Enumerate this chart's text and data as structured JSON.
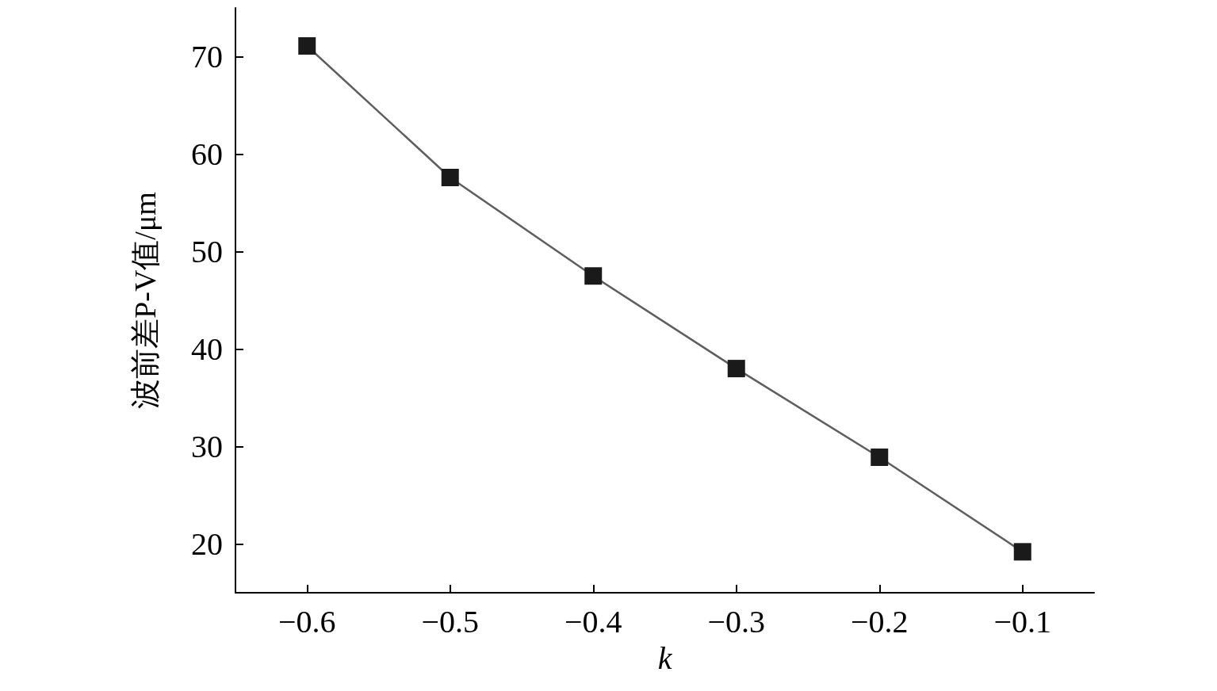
{
  "chart_data": {
    "type": "line",
    "xlabel": "k",
    "ylabel": "波前差P-V值/μm",
    "x": [
      -0.6,
      -0.5,
      -0.4,
      -0.3,
      -0.2,
      -0.1
    ],
    "series": [
      {
        "color": "#1a1a1a",
        "values": [
          71.1,
          57.6,
          47.5,
          38.0,
          28.9,
          19.2
        ]
      }
    ],
    "xlim": [
      -0.65,
      -0.05
    ],
    "xticks": [
      {
        "value": -0.6,
        "label": "−0.6"
      },
      {
        "value": -0.5,
        "label": "−0.5"
      },
      {
        "value": -0.4,
        "label": "−0.4"
      },
      {
        "value": -0.3,
        "label": "−0.3"
      },
      {
        "value": -0.2,
        "label": "−0.2"
      },
      {
        "value": -0.1,
        "label": "−0.1"
      }
    ],
    "ylim": [
      15,
      75
    ],
    "yticks": [
      20,
      30,
      40,
      50,
      60,
      70
    ],
    "grid": false,
    "marker": "square",
    "line_style": "solid"
  }
}
